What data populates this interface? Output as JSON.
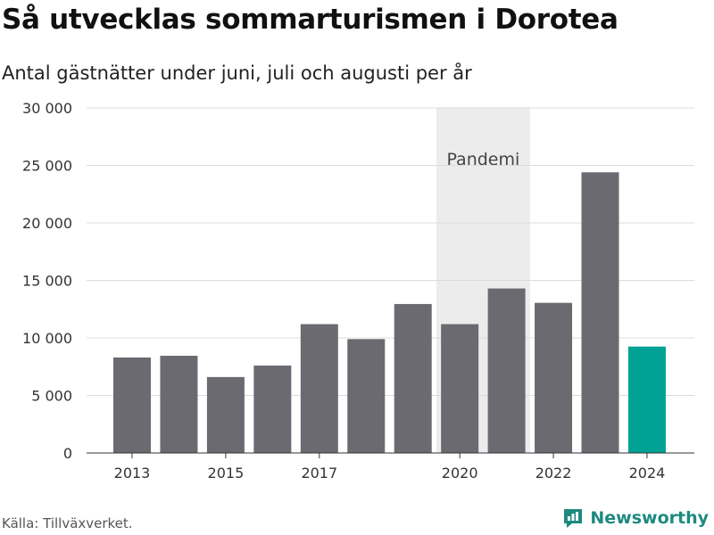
{
  "title": "Så utvecklas sommarturismen i Dorotea",
  "subtitle": "Antal gästnätter under juni, juli och augusti per år",
  "source": "Källa: Tillväxverket.",
  "brand": "Newsworthy",
  "colors": {
    "bar": "#6b6a70",
    "highlight": "#00a295",
    "shade": "#ececec",
    "grid": "#dcdcdc",
    "brand": "#1d8a80"
  },
  "chart_data": {
    "type": "bar",
    "x": [
      2013,
      2014,
      2015,
      2016,
      2017,
      2018,
      2019,
      2020,
      2021,
      2022,
      2023,
      2024
    ],
    "values": [
      8300,
      8450,
      6600,
      7600,
      11200,
      9900,
      12950,
      11200,
      14300,
      13050,
      24400,
      9250
    ],
    "highlight_index": 11,
    "xticks": [
      2013,
      2015,
      2017,
      2020,
      2022,
      2024
    ],
    "xtick_labels": [
      "2013",
      "2015",
      "2017",
      "2020",
      "2022",
      "2024"
    ],
    "yticks": [
      0,
      5000,
      10000,
      15000,
      20000,
      25000,
      30000
    ],
    "ytick_labels": [
      "0",
      "5 000",
      "10 000",
      "15 000",
      "20 000",
      "25 000",
      "30 000"
    ],
    "ylim": [
      0,
      30000
    ],
    "grid": true,
    "shaded_region": {
      "label": "Pandemi",
      "from": 2020,
      "to": 2021
    }
  }
}
